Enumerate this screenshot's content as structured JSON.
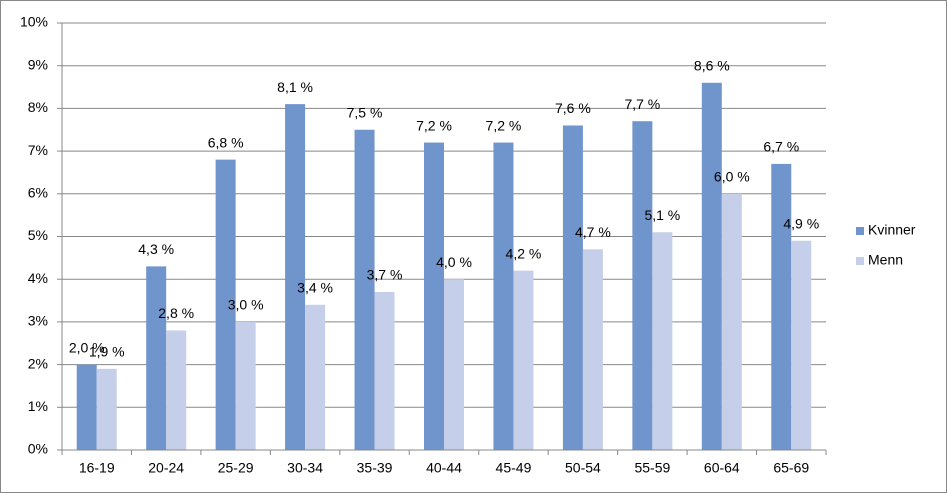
{
  "chart_data": {
    "type": "bar",
    "categories": [
      "16-19",
      "20-24",
      "25-29",
      "30-34",
      "35-39",
      "40-44",
      "45-49",
      "50-54",
      "55-59",
      "60-64",
      "65-69"
    ],
    "series": [
      {
        "name": "Kvinner",
        "color": "#7094cc",
        "values": [
          2.0,
          4.3,
          6.8,
          8.1,
          7.5,
          7.2,
          7.2,
          7.6,
          7.7,
          8.6,
          6.7
        ],
        "value_labels": [
          "2,0 %",
          "4,3 %",
          "6,8 %",
          "8,1 %",
          "7,5 %",
          "7,2 %",
          "7,2 %",
          "7,6 %",
          "7,7 %",
          "8,6 %",
          "6,7 %"
        ]
      },
      {
        "name": "Menn",
        "color": "#c6cfea",
        "values": [
          1.9,
          2.8,
          3.0,
          3.4,
          3.7,
          4.0,
          4.2,
          4.7,
          5.1,
          6.0,
          4.9
        ],
        "value_labels": [
          "1,9 %",
          "2,8 %",
          "3,0 %",
          "3,4 %",
          "3,7 %",
          "4,0 %",
          "4,2 %",
          "4,7 %",
          "5,1 %",
          "6,0 %",
          "4,9 %"
        ]
      }
    ],
    "ylim": [
      0,
      10
    ],
    "yticks": [
      {
        "value": 0,
        "label": "0%"
      },
      {
        "value": 1,
        "label": "1%"
      },
      {
        "value": 2,
        "label": "2%"
      },
      {
        "value": 3,
        "label": "3%"
      },
      {
        "value": 4,
        "label": "4%"
      },
      {
        "value": 5,
        "label": "5%"
      },
      {
        "value": 6,
        "label": "6%"
      },
      {
        "value": 7,
        "label": "7%"
      },
      {
        "value": 8,
        "label": "8%"
      },
      {
        "value": 9,
        "label": "9%"
      },
      {
        "value": 10,
        "label": "10%"
      }
    ],
    "grid": true,
    "legend": "right"
  }
}
